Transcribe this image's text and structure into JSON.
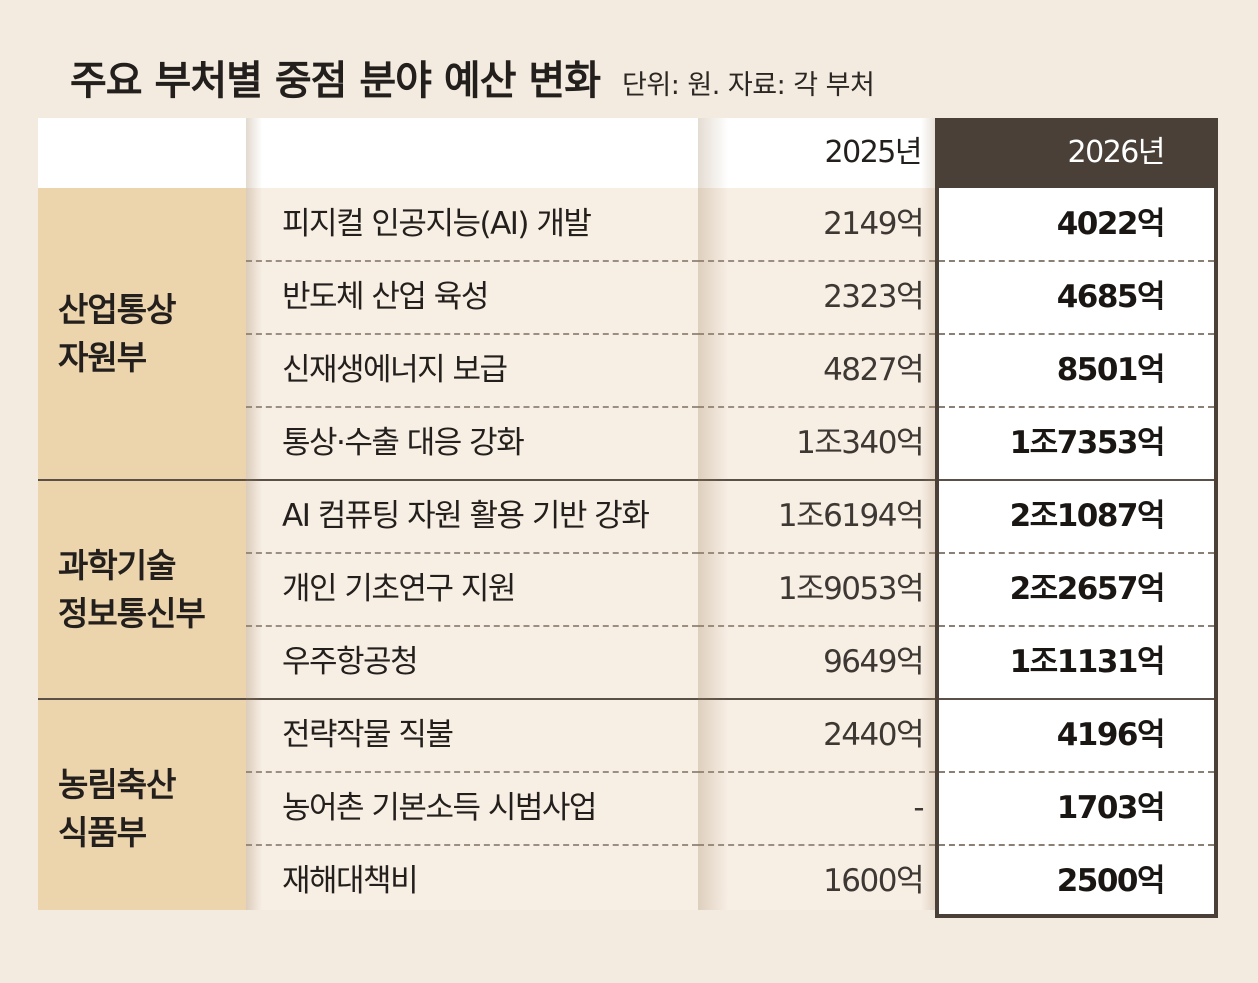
{
  "title": "주요 부처별 중점 분야 예산 변화",
  "subtitle": "단위: 원. 자료: 각 부처",
  "colors": {
    "background": "#f3ebdf",
    "dept_fill": "#ecd4ad",
    "header_2026": "#4b4038",
    "row_fill": "#f7eee4"
  },
  "chart_data": {
    "type": "table",
    "columns": [
      "",
      "",
      "2025년",
      "2026년"
    ],
    "groups": [
      {
        "department": "산업통상\n자원부",
        "rows": [
          {
            "item": "피지컬 인공지능(AI) 개발",
            "y2025": "2149억",
            "y2026": "4022억"
          },
          {
            "item": "반도체 산업 육성",
            "y2025": "2323억",
            "y2026": "4685억"
          },
          {
            "item": "신재생에너지 보급",
            "y2025": "4827억",
            "y2026": "8501억"
          },
          {
            "item": "통상·수출 대응 강화",
            "y2025": "1조340억",
            "y2026": "1조7353억"
          }
        ]
      },
      {
        "department": "과학기술\n정보통신부",
        "rows": [
          {
            "item": "AI 컴퓨팅 자원 활용 기반 강화",
            "y2025": "1조6194억",
            "y2026": "2조1087억"
          },
          {
            "item": "개인 기초연구 지원",
            "y2025": "1조9053억",
            "y2026": "2조2657억"
          },
          {
            "item": "우주항공청",
            "y2025": "9649억",
            "y2026": "1조1131억"
          }
        ]
      },
      {
        "department": "농림축산\n식품부",
        "rows": [
          {
            "item": "전략작물 직불",
            "y2025": "2440억",
            "y2026": "4196억"
          },
          {
            "item": "농어촌 기본소득 시범사업",
            "y2025": "-",
            "y2026": "1703억"
          },
          {
            "item": "재해대책비",
            "y2025": "1600억",
            "y2026": "2500억"
          }
        ]
      }
    ]
  }
}
